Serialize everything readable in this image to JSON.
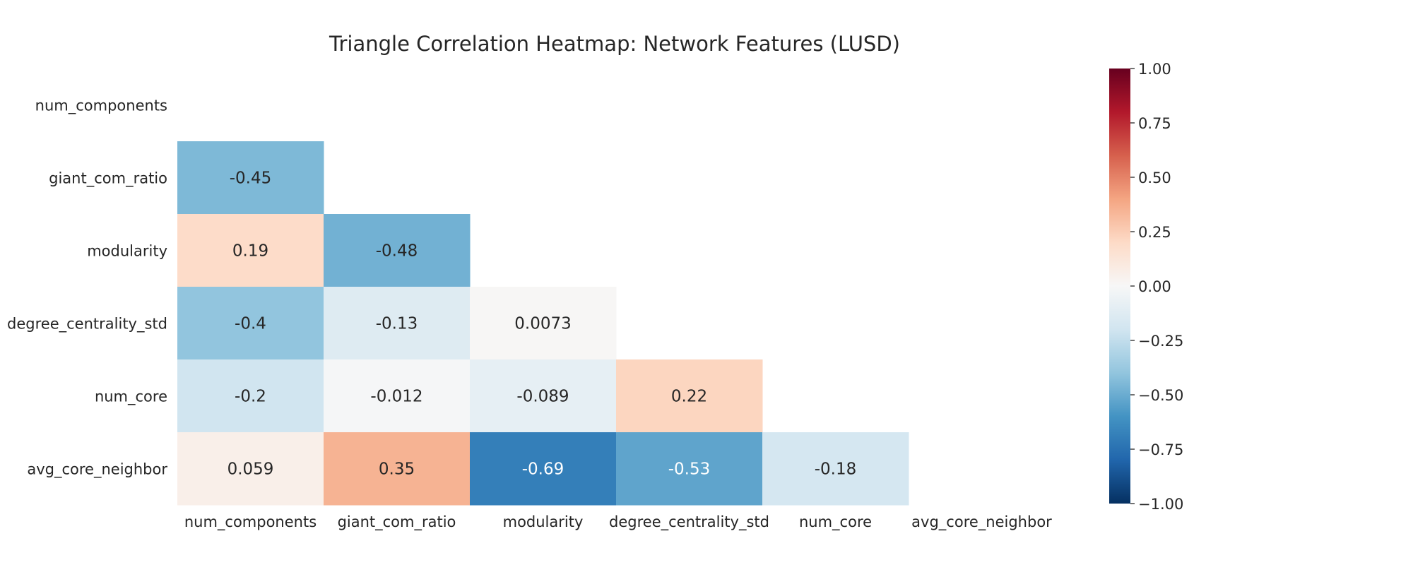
{
  "chart_data": {
    "type": "heatmap",
    "title": "Triangle Correlation Heatmap: Network Features (LUSD)",
    "xlabel": "",
    "ylabel": "",
    "x_labels": [
      "num_components",
      "giant_com_ratio",
      "modularity",
      "degree_centrality_std",
      "num_core",
      "avg_core_neighbor"
    ],
    "y_labels": [
      "num_components",
      "giant_com_ratio",
      "modularity",
      "degree_centrality_std",
      "num_core",
      "avg_core_neighbor"
    ],
    "mask": "upper-triangle-including-diagonal",
    "cells": [
      {
        "row": 1,
        "col": 0,
        "label": "-0.45",
        "value": -0.45
      },
      {
        "row": 2,
        "col": 0,
        "label": "0.19",
        "value": 0.19
      },
      {
        "row": 2,
        "col": 1,
        "label": "-0.48",
        "value": -0.48
      },
      {
        "row": 3,
        "col": 0,
        "label": "-0.4",
        "value": -0.4
      },
      {
        "row": 3,
        "col": 1,
        "label": "-0.13",
        "value": -0.13
      },
      {
        "row": 3,
        "col": 2,
        "label": "0.0073",
        "value": 0.0073
      },
      {
        "row": 4,
        "col": 0,
        "label": "-0.2",
        "value": -0.2
      },
      {
        "row": 4,
        "col": 1,
        "label": "-0.012",
        "value": -0.012
      },
      {
        "row": 4,
        "col": 2,
        "label": "-0.089",
        "value": -0.089
      },
      {
        "row": 4,
        "col": 3,
        "label": "0.22",
        "value": 0.22
      },
      {
        "row": 5,
        "col": 0,
        "label": "0.059",
        "value": 0.059
      },
      {
        "row": 5,
        "col": 1,
        "label": "0.35",
        "value": 0.35
      },
      {
        "row": 5,
        "col": 2,
        "label": "-0.69",
        "value": -0.69
      },
      {
        "row": 5,
        "col": 3,
        "label": "-0.53",
        "value": -0.53
      },
      {
        "row": 5,
        "col": 4,
        "label": "-0.18",
        "value": -0.18
      }
    ],
    "colorbar": {
      "range": [
        -1,
        1
      ],
      "ticks": [
        "1.00",
        "0.75",
        "0.50",
        "0.25",
        "0.00",
        "−0.25",
        "−0.50",
        "−0.75",
        "−1.00"
      ],
      "tick_values": [
        1,
        0.75,
        0.5,
        0.25,
        0,
        -0.25,
        -0.5,
        -0.75,
        -1
      ],
      "colormap": "RdBu_r",
      "colormap_stops": [
        "#053061",
        "#2166ac",
        "#4393c3",
        "#92c5de",
        "#d1e5f0",
        "#f7f7f7",
        "#fddbc7",
        "#f4a582",
        "#d6604d",
        "#b2182b",
        "#67001f"
      ]
    },
    "grid": false,
    "legend": "colorbar-right"
  }
}
